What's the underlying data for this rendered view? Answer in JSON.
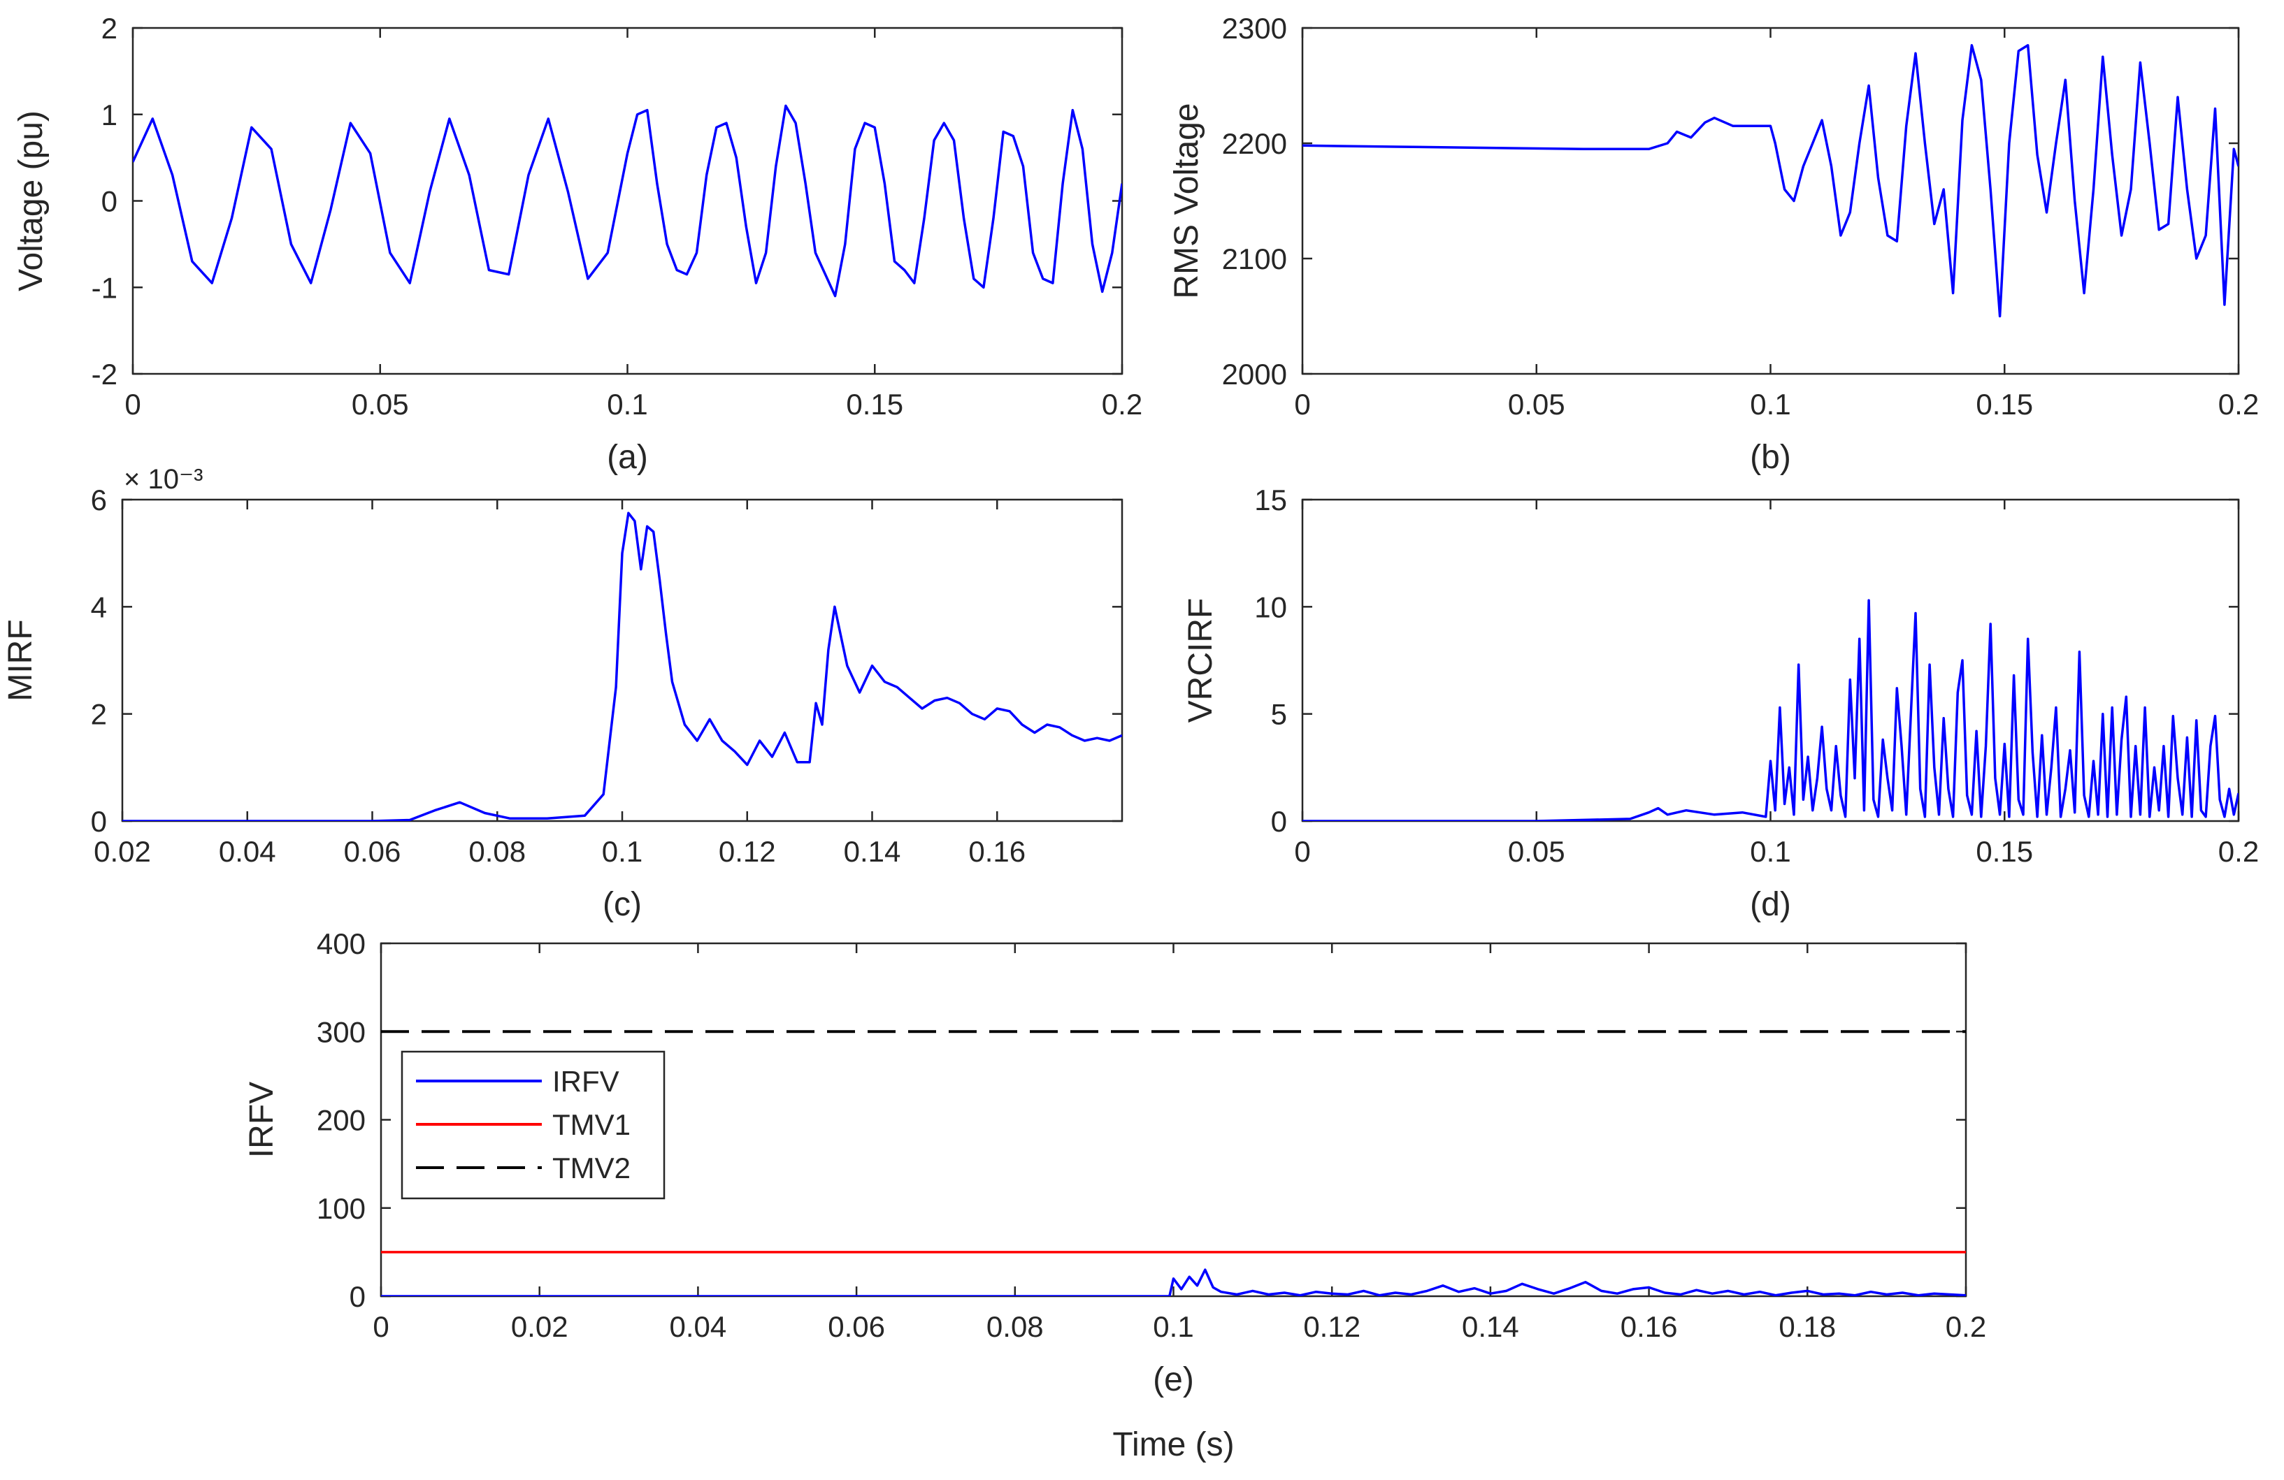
{
  "colors": {
    "blue": "#0000ff",
    "red": "#ff0000",
    "black": "#000000",
    "axis": "#262626"
  },
  "chart_data": [
    {
      "type": "line",
      "id": "a",
      "caption": "(a)",
      "xlabel": "",
      "ylabel": "Voltage (pu)",
      "xlim": [
        0,
        0.2
      ],
      "ylim": [
        -2,
        2
      ],
      "xticks": [
        0,
        0.05,
        0.1,
        0.15,
        0.2
      ],
      "yticks": [
        -2,
        -1,
        0,
        1,
        2
      ],
      "exponent_label": "",
      "series": [
        {
          "name": "Voltage",
          "color": "#0000ff",
          "x": [
            0,
            0.004,
            0.008,
            0.012,
            0.016,
            0.02,
            0.024,
            0.028,
            0.032,
            0.036,
            0.04,
            0.044,
            0.048,
            0.052,
            0.056,
            0.06,
            0.064,
            0.068,
            0.072,
            0.076,
            0.08,
            0.084,
            0.088,
            0.092,
            0.096,
            0.1,
            0.102,
            0.104,
            0.106,
            0.108,
            0.11,
            0.112,
            0.114,
            0.116,
            0.118,
            0.12,
            0.122,
            0.124,
            0.126,
            0.128,
            0.13,
            0.132,
            0.134,
            0.136,
            0.138,
            0.14,
            0.142,
            0.144,
            0.146,
            0.148,
            0.15,
            0.152,
            0.154,
            0.156,
            0.158,
            0.16,
            0.162,
            0.164,
            0.166,
            0.168,
            0.17,
            0.172,
            0.174,
            0.176,
            0.178,
            0.18,
            0.182,
            0.184,
            0.186,
            0.188,
            0.19,
            0.192,
            0.194,
            0.196,
            0.198,
            0.2
          ],
          "y": [
            0.45,
            0.95,
            0.3,
            -0.7,
            -0.95,
            -0.2,
            0.85,
            0.6,
            -0.5,
            -0.95,
            -0.1,
            0.9,
            0.55,
            -0.6,
            -0.95,
            0.1,
            0.95,
            0.3,
            -0.8,
            -0.85,
            0.3,
            0.95,
            0.1,
            -0.9,
            -0.6,
            0.55,
            1.0,
            1.05,
            0.2,
            -0.5,
            -0.8,
            -0.85,
            -0.6,
            0.3,
            0.85,
            0.9,
            0.5,
            -0.3,
            -0.95,
            -0.6,
            0.4,
            1.1,
            0.9,
            0.2,
            -0.6,
            -0.85,
            -1.1,
            -0.5,
            0.6,
            0.9,
            0.85,
            0.2,
            -0.7,
            -0.8,
            -0.95,
            -0.2,
            0.7,
            0.9,
            0.7,
            -0.2,
            -0.9,
            -1.0,
            -0.2,
            0.8,
            0.75,
            0.4,
            -0.6,
            -0.9,
            -0.95,
            0.2,
            1.05,
            0.6,
            -0.5,
            -1.05,
            -0.6,
            0.2
          ]
        }
      ]
    },
    {
      "type": "line",
      "id": "b",
      "caption": "(b)",
      "xlabel": "",
      "ylabel": "RMS Voltage",
      "xlim": [
        0,
        0.2
      ],
      "ylim": [
        2000,
        2300
      ],
      "xticks": [
        0,
        0.05,
        0.1,
        0.15,
        0.2
      ],
      "yticks": [
        2000,
        2100,
        2200,
        2300
      ],
      "exponent_label": "",
      "series": [
        {
          "name": "RMS Voltage",
          "color": "#0000ff",
          "x": [
            0,
            0.02,
            0.04,
            0.06,
            0.07,
            0.074,
            0.078,
            0.08,
            0.083,
            0.086,
            0.088,
            0.092,
            0.096,
            0.1,
            0.101,
            0.103,
            0.105,
            0.107,
            0.109,
            0.111,
            0.113,
            0.115,
            0.117,
            0.119,
            0.121,
            0.123,
            0.125,
            0.127,
            0.129,
            0.131,
            0.133,
            0.135,
            0.137,
            0.139,
            0.141,
            0.143,
            0.145,
            0.147,
            0.149,
            0.151,
            0.153,
            0.155,
            0.157,
            0.159,
            0.161,
            0.163,
            0.165,
            0.167,
            0.169,
            0.171,
            0.173,
            0.175,
            0.177,
            0.179,
            0.181,
            0.183,
            0.185,
            0.187,
            0.189,
            0.191,
            0.193,
            0.195,
            0.197,
            0.199,
            0.2
          ],
          "y": [
            2198,
            2197,
            2196,
            2195,
            2195,
            2195,
            2200,
            2210,
            2205,
            2218,
            2222,
            2215,
            2215,
            2215,
            2200,
            2160,
            2150,
            2180,
            2200,
            2220,
            2180,
            2120,
            2140,
            2200,
            2250,
            2170,
            2120,
            2115,
            2215,
            2278,
            2200,
            2130,
            2160,
            2070,
            2220,
            2285,
            2255,
            2160,
            2050,
            2200,
            2280,
            2285,
            2190,
            2140,
            2200,
            2255,
            2150,
            2070,
            2160,
            2275,
            2190,
            2120,
            2160,
            2270,
            2200,
            2125,
            2130,
            2240,
            2160,
            2100,
            2120,
            2230,
            2060,
            2195,
            2180
          ]
        }
      ]
    },
    {
      "type": "line",
      "id": "c",
      "caption": "(c)",
      "xlabel": "",
      "ylabel": "MIRF",
      "xlim": [
        0.02,
        0.18
      ],
      "ylim": [
        0,
        6
      ],
      "xticks": [
        0.02,
        0.04,
        0.06,
        0.08,
        0.1,
        0.12,
        0.14,
        0.16
      ],
      "yticks": [
        0,
        2,
        4,
        6
      ],
      "exponent_label": "× 10⁻³",
      "series": [
        {
          "name": "MIRF",
          "color": "#0000ff",
          "x": [
            0.02,
            0.04,
            0.06,
            0.066,
            0.07,
            0.074,
            0.078,
            0.082,
            0.088,
            0.094,
            0.097,
            0.099,
            0.1,
            0.101,
            0.102,
            0.103,
            0.104,
            0.105,
            0.106,
            0.107,
            0.108,
            0.11,
            0.112,
            0.114,
            0.116,
            0.118,
            0.12,
            0.122,
            0.124,
            0.126,
            0.128,
            0.13,
            0.131,
            0.132,
            0.133,
            0.134,
            0.136,
            0.138,
            0.14,
            0.142,
            0.144,
            0.146,
            0.148,
            0.15,
            0.152,
            0.154,
            0.156,
            0.158,
            0.16,
            0.162,
            0.164,
            0.166,
            0.168,
            0.17,
            0.172,
            0.174,
            0.176,
            0.178,
            0.18
          ],
          "y": [
            0,
            0,
            0,
            0.02,
            0.2,
            0.35,
            0.15,
            0.05,
            0.05,
            0.1,
            0.5,
            2.5,
            5.0,
            5.75,
            5.6,
            4.7,
            5.5,
            5.4,
            4.5,
            3.5,
            2.6,
            1.8,
            1.5,
            1.9,
            1.5,
            1.3,
            1.05,
            1.5,
            1.2,
            1.65,
            1.1,
            1.1,
            2.2,
            1.8,
            3.2,
            4.0,
            2.9,
            2.4,
            2.9,
            2.6,
            2.5,
            2.3,
            2.1,
            2.25,
            2.3,
            2.2,
            2.0,
            1.9,
            2.1,
            2.05,
            1.8,
            1.65,
            1.8,
            1.75,
            1.6,
            1.5,
            1.55,
            1.5,
            1.6
          ]
        }
      ]
    },
    {
      "type": "line",
      "id": "d",
      "caption": "(d)",
      "xlabel": "",
      "ylabel": "VRCIRF",
      "xlim": [
        0,
        0.2
      ],
      "ylim": [
        0,
        15
      ],
      "xticks": [
        0,
        0.05,
        0.1,
        0.15,
        0.2
      ],
      "yticks": [
        0,
        5,
        10,
        15
      ],
      "exponent_label": "",
      "series": [
        {
          "name": "VRCIRF",
          "color": "#0000ff",
          "x": [
            0,
            0.05,
            0.07,
            0.074,
            0.076,
            0.078,
            0.082,
            0.088,
            0.094,
            0.099,
            0.1,
            0.101,
            0.102,
            0.103,
            0.104,
            0.105,
            0.106,
            0.107,
            0.108,
            0.109,
            0.11,
            0.111,
            0.112,
            0.113,
            0.114,
            0.115,
            0.116,
            0.117,
            0.118,
            0.119,
            0.12,
            0.121,
            0.122,
            0.123,
            0.124,
            0.125,
            0.126,
            0.127,
            0.128,
            0.129,
            0.13,
            0.131,
            0.132,
            0.133,
            0.134,
            0.135,
            0.136,
            0.137,
            0.138,
            0.139,
            0.14,
            0.141,
            0.142,
            0.143,
            0.144,
            0.145,
            0.146,
            0.147,
            0.148,
            0.149,
            0.15,
            0.151,
            0.152,
            0.153,
            0.154,
            0.155,
            0.156,
            0.157,
            0.158,
            0.159,
            0.16,
            0.161,
            0.162,
            0.163,
            0.164,
            0.165,
            0.166,
            0.167,
            0.168,
            0.169,
            0.17,
            0.171,
            0.172,
            0.173,
            0.174,
            0.175,
            0.176,
            0.177,
            0.178,
            0.179,
            0.18,
            0.181,
            0.182,
            0.183,
            0.184,
            0.185,
            0.186,
            0.187,
            0.188,
            0.189,
            0.19,
            0.191,
            0.192,
            0.193,
            0.194,
            0.195,
            0.196,
            0.197,
            0.198,
            0.199,
            0.2
          ],
          "y": [
            0,
            0,
            0.1,
            0.4,
            0.6,
            0.3,
            0.5,
            0.3,
            0.4,
            0.2,
            2.8,
            0.5,
            5.3,
            0.8,
            2.5,
            0.3,
            7.3,
            1.0,
            3.0,
            0.5,
            2.0,
            4.4,
            1.5,
            0.5,
            3.5,
            1.2,
            0.2,
            6.6,
            2.0,
            8.5,
            0.5,
            10.3,
            1.0,
            0.2,
            3.8,
            2.0,
            0.5,
            6.2,
            3.5,
            0.3,
            5.0,
            9.7,
            1.5,
            0.2,
            7.3,
            2.5,
            0.3,
            4.8,
            1.5,
            0.2,
            6.0,
            7.5,
            1.2,
            0.3,
            4.2,
            0.2,
            3.5,
            9.2,
            2.0,
            0.3,
            3.6,
            0.2,
            6.8,
            1.0,
            0.3,
            8.5,
            3.2,
            0.2,
            4.0,
            0.3,
            2.5,
            5.3,
            0.2,
            1.5,
            3.3,
            0.4,
            7.9,
            1.2,
            0.2,
            2.8,
            0.3,
            5.0,
            0.2,
            5.3,
            0.3,
            3.8,
            5.8,
            0.2,
            3.5,
            0.3,
            5.3,
            0.2,
            2.5,
            0.5,
            3.5,
            0.2,
            4.9,
            2.0,
            0.3,
            3.9,
            0.2,
            4.7,
            0.5,
            0.2,
            3.5,
            4.9,
            1.0,
            0.2,
            1.5,
            0.3,
            1.3
          ]
        }
      ]
    },
    {
      "type": "line",
      "id": "e",
      "caption": "(e)",
      "xlabel": "Time (s)",
      "ylabel": "IRFV",
      "xlim": [
        0,
        0.2
      ],
      "ylim": [
        0,
        400
      ],
      "xticks": [
        0,
        0.02,
        0.04,
        0.06,
        0.08,
        0.1,
        0.12,
        0.14,
        0.16,
        0.18,
        0.2
      ],
      "yticks": [
        0,
        100,
        200,
        300,
        400
      ],
      "exponent_label": "",
      "legend": {
        "placement": "left",
        "entries": [
          "IRFV",
          "TMV1",
          "TMV2"
        ]
      },
      "series": [
        {
          "name": "IRFV",
          "color": "#0000ff",
          "dash": "solid",
          "x": [
            0,
            0.05,
            0.0995,
            0.1,
            0.101,
            0.102,
            0.103,
            0.104,
            0.105,
            0.106,
            0.108,
            0.11,
            0.112,
            0.114,
            0.116,
            0.118,
            0.12,
            0.122,
            0.124,
            0.126,
            0.128,
            0.13,
            0.132,
            0.134,
            0.136,
            0.138,
            0.14,
            0.142,
            0.144,
            0.146,
            0.148,
            0.15,
            0.152,
            0.154,
            0.156,
            0.158,
            0.16,
            0.162,
            0.164,
            0.166,
            0.168,
            0.17,
            0.172,
            0.174,
            0.176,
            0.178,
            0.18,
            0.182,
            0.184,
            0.186,
            0.188,
            0.19,
            0.192,
            0.194,
            0.196,
            0.198,
            0.2
          ],
          "y": [
            0,
            0,
            0,
            20,
            8,
            22,
            12,
            30,
            10,
            5,
            2,
            6,
            2,
            4,
            1,
            5,
            3,
            2,
            6,
            1,
            4,
            2,
            6,
            12,
            5,
            9,
            3,
            6,
            14,
            8,
            3,
            9,
            16,
            6,
            3,
            8,
            10,
            4,
            2,
            7,
            3,
            6,
            2,
            5,
            1,
            4,
            6,
            2,
            3,
            1,
            5,
            2,
            4,
            1,
            3,
            2,
            1
          ]
        },
        {
          "name": "TMV1",
          "color": "#ff0000",
          "dash": "solid",
          "x": [
            0,
            0.2
          ],
          "y": [
            50,
            50
          ]
        },
        {
          "name": "TMV2",
          "color": "#000000",
          "dash": "dashed",
          "x": [
            0,
            0.2
          ],
          "y": [
            300,
            300
          ]
        }
      ]
    }
  ]
}
